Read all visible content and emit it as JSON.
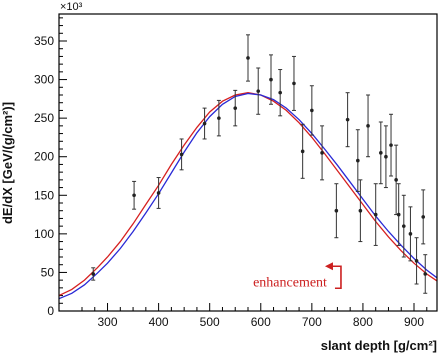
{
  "chart_data": {
    "type": "scatter",
    "title": "",
    "xlabel": "slant depth [g/cm²]",
    "ylabel": "dE/dX [GeV/(g/cm²)]",
    "y_multiplier": "×10³",
    "xlim": [
      205,
      945
    ],
    "ylim": [
      0,
      385
    ],
    "x_ticks": [
      300,
      400,
      500,
      600,
      700,
      800,
      900
    ],
    "y_ticks": [
      0,
      50,
      100,
      150,
      200,
      250,
      300,
      350
    ],
    "grid": false,
    "annotation": {
      "text": "enhancement",
      "x": 757,
      "y": 58,
      "color": "#cc2020"
    },
    "points": [
      {
        "x": 272,
        "y": 48,
        "err": 8
      },
      {
        "x": 352,
        "y": 150,
        "err": 18
      },
      {
        "x": 400,
        "y": 153,
        "err": 20
      },
      {
        "x": 445,
        "y": 203,
        "err": 20
      },
      {
        "x": 490,
        "y": 243,
        "err": 20
      },
      {
        "x": 518,
        "y": 250,
        "err": 23
      },
      {
        "x": 550,
        "y": 263,
        "err": 23
      },
      {
        "x": 575,
        "y": 328,
        "err": 30
      },
      {
        "x": 595,
        "y": 285,
        "err": 30
      },
      {
        "x": 620,
        "y": 300,
        "err": 32
      },
      {
        "x": 638,
        "y": 283,
        "err": 30
      },
      {
        "x": 665,
        "y": 295,
        "err": 35
      },
      {
        "x": 682,
        "y": 207,
        "err": 35
      },
      {
        "x": 700,
        "y": 260,
        "err": 32
      },
      {
        "x": 720,
        "y": 205,
        "err": 35
      },
      {
        "x": 748,
        "y": 130,
        "err": 35
      },
      {
        "x": 770,
        "y": 248,
        "err": 35
      },
      {
        "x": 790,
        "y": 195,
        "err": 40
      },
      {
        "x": 795,
        "y": 130,
        "err": 40
      },
      {
        "x": 810,
        "y": 240,
        "err": 40
      },
      {
        "x": 825,
        "y": 125,
        "err": 40
      },
      {
        "x": 835,
        "y": 205,
        "err": 40
      },
      {
        "x": 845,
        "y": 200,
        "err": 40
      },
      {
        "x": 855,
        "y": 215,
        "err": 40
      },
      {
        "x": 865,
        "y": 170,
        "err": 45
      },
      {
        "x": 870,
        "y": 125,
        "err": 40
      },
      {
        "x": 880,
        "y": 110,
        "err": 40
      },
      {
        "x": 893,
        "y": 100,
        "err": 35
      },
      {
        "x": 905,
        "y": 65,
        "err": 30
      },
      {
        "x": 918,
        "y": 122,
        "err": 35
      },
      {
        "x": 922,
        "y": 48,
        "err": 25
      }
    ],
    "series": [
      {
        "color": "#d62020",
        "x": [
          205,
          230,
          255,
          280,
          300,
          325,
          350,
          375,
          400,
          425,
          450,
          475,
          500,
          525,
          550,
          575,
          600,
          625,
          650,
          675,
          700,
          725,
          750,
          775,
          800,
          825,
          850,
          875,
          900,
          925,
          945
        ],
        "y": [
          20,
          28,
          40,
          56,
          70,
          90,
          113,
          138,
          163,
          190,
          215,
          238,
          258,
          272,
          280,
          283,
          280,
          272,
          260,
          244,
          225,
          204,
          182,
          160,
          138,
          116,
          96,
          78,
          62,
          48,
          39
        ]
      },
      {
        "color": "#2a2ad6",
        "x": [
          205,
          230,
          255,
          280,
          300,
          325,
          350,
          375,
          400,
          425,
          450,
          475,
          500,
          525,
          550,
          575,
          600,
          625,
          650,
          675,
          700,
          725,
          750,
          775,
          800,
          825,
          850,
          875,
          900,
          925,
          945
        ],
        "y": [
          16,
          23,
          34,
          49,
          62,
          81,
          103,
          127,
          152,
          179,
          206,
          231,
          252,
          268,
          278,
          282,
          280,
          274,
          263,
          248,
          230,
          210,
          189,
          167,
          145,
          123,
          103,
          85,
          68,
          53,
          43
        ]
      }
    ]
  }
}
